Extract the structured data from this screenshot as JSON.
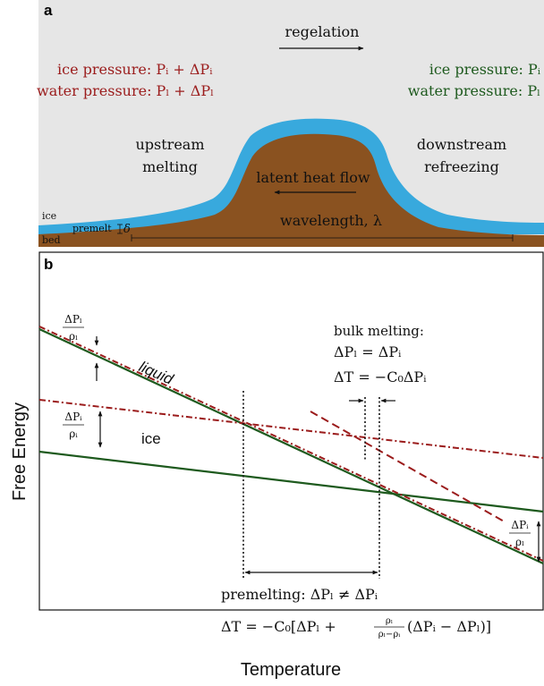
{
  "panel_a": {
    "letter": "a",
    "regelation": "regelation",
    "ice_pressure_left": "ice pressure: Pᵢ + ΔPᵢ",
    "water_pressure_left": "water pressure: Pₗ + ΔPₗ",
    "ice_pressure_right": "ice pressure: Pᵢ",
    "water_pressure_right": "water pressure: Pₗ",
    "upstream_1": "upstream",
    "upstream_2": "melting",
    "downstream_1": "downstream",
    "downstream_2": "refreezing",
    "latent_heat": "latent heat flow",
    "wavelength": "wavelength, λ",
    "ice_label": "ice",
    "premelt_label": "premelt",
    "delta": "δ",
    "bed_label": "bed",
    "colors": {
      "sky": "#e6e6e6",
      "ice": "#38a9dd",
      "bed": "#8a5220",
      "red_text": "#9b1c1c",
      "green_text": "#1e5a1e"
    }
  },
  "panel_b": {
    "letter": "b",
    "ylabel": "Free Energy",
    "xlabel": "Temperature",
    "liquid_label": "liquid",
    "ice_label": "ice",
    "dPl_num": "ΔPₗ",
    "dPl_den": "ρₗ",
    "dPi_num": "ΔPᵢ",
    "dPi_den": "ρᵢ",
    "dPi_num_right": "ΔPᵢ",
    "dPi_den_right": "ρₗ",
    "bulk_title": "bulk melting:",
    "bulk_eq1": "ΔPₗ = ΔPᵢ",
    "bulk_eq2": "ΔT = −C₀ΔPᵢ",
    "premelt_eq1": "premelting: ΔPₗ ≠ ΔPᵢ",
    "premelt_eq2_a": "ΔT = −C₀[ΔPₗ + ",
    "premelt_frac_num": "ρₗ",
    "premelt_frac_den": "ρₗ−ρᵢ",
    "premelt_eq2_b": "(ΔPᵢ − ΔPₗ)]",
    "colors": {
      "green_line": "#1e5a1e",
      "red_line": "#9b1c1c"
    }
  }
}
